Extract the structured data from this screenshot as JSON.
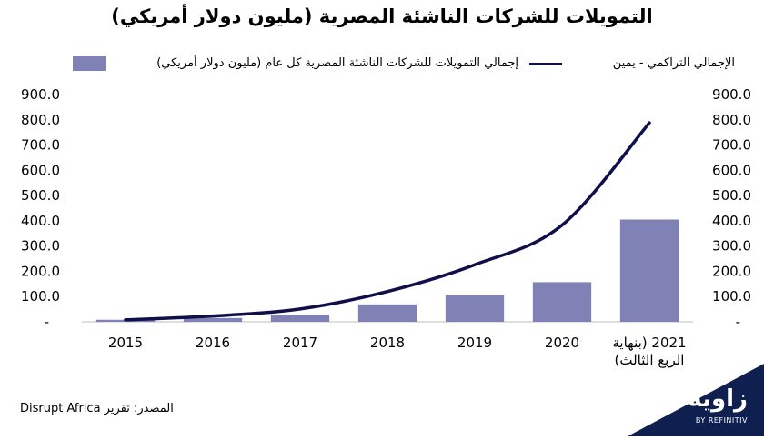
{
  "header": {
    "title": "التمويلات للشركات الناشئة المصرية (مليون دولار أمريكي)"
  },
  "legend": {
    "bar_label": "إجمالي التمويلات للشركات الناشئة المصرية كل عام (مليون دولار أمريكي)",
    "line_label": "الإجمالي التراكمي - يمين"
  },
  "source": {
    "text": "المصدر: تقرير Disrupt Africa"
  },
  "logo": {
    "text": "زاوية",
    "sub": "BY REFINITIV"
  },
  "chart_data": {
    "type": "bar",
    "categories": [
      "2015",
      "2016",
      "2017",
      "2018",
      "2019",
      "2020",
      "2021 (بنهاية الربع الثالث)"
    ],
    "x_tick_lines": [
      [
        "2015"
      ],
      [
        "2016"
      ],
      [
        "2017"
      ],
      [
        "2018"
      ],
      [
        "2019"
      ],
      [
        "2020"
      ],
      [
        "2021 (بنهاية",
        "الربع الثالث)"
      ]
    ],
    "series": [
      {
        "name": "إجمالي التمويلات للشركات الناشئة المصرية كل عام (مليون دولار أمريكي)",
        "kind": "bar",
        "axis": "left",
        "color": "#8081b4",
        "values": [
          8,
          15,
          28,
          69,
          106,
          157,
          405
        ]
      },
      {
        "name": "الإجمالي التراكمي - يمين",
        "kind": "line",
        "axis": "right",
        "color": "#0f0f4a",
        "values": [
          8,
          23,
          51,
          120,
          226,
          383,
          788
        ]
      }
    ],
    "ylim_left": [
      0,
      900
    ],
    "ylim_right": [
      0,
      900
    ],
    "y_ticks": [
      0,
      100,
      200,
      300,
      400,
      500,
      600,
      700,
      800,
      900
    ],
    "y_tick_labels": [
      "-",
      "100.0",
      "200.0",
      "300.0",
      "400.0",
      "500.0",
      "600.0",
      "700.0",
      "800.0",
      "900.0"
    ],
    "legend_position": "top",
    "grid": false
  }
}
